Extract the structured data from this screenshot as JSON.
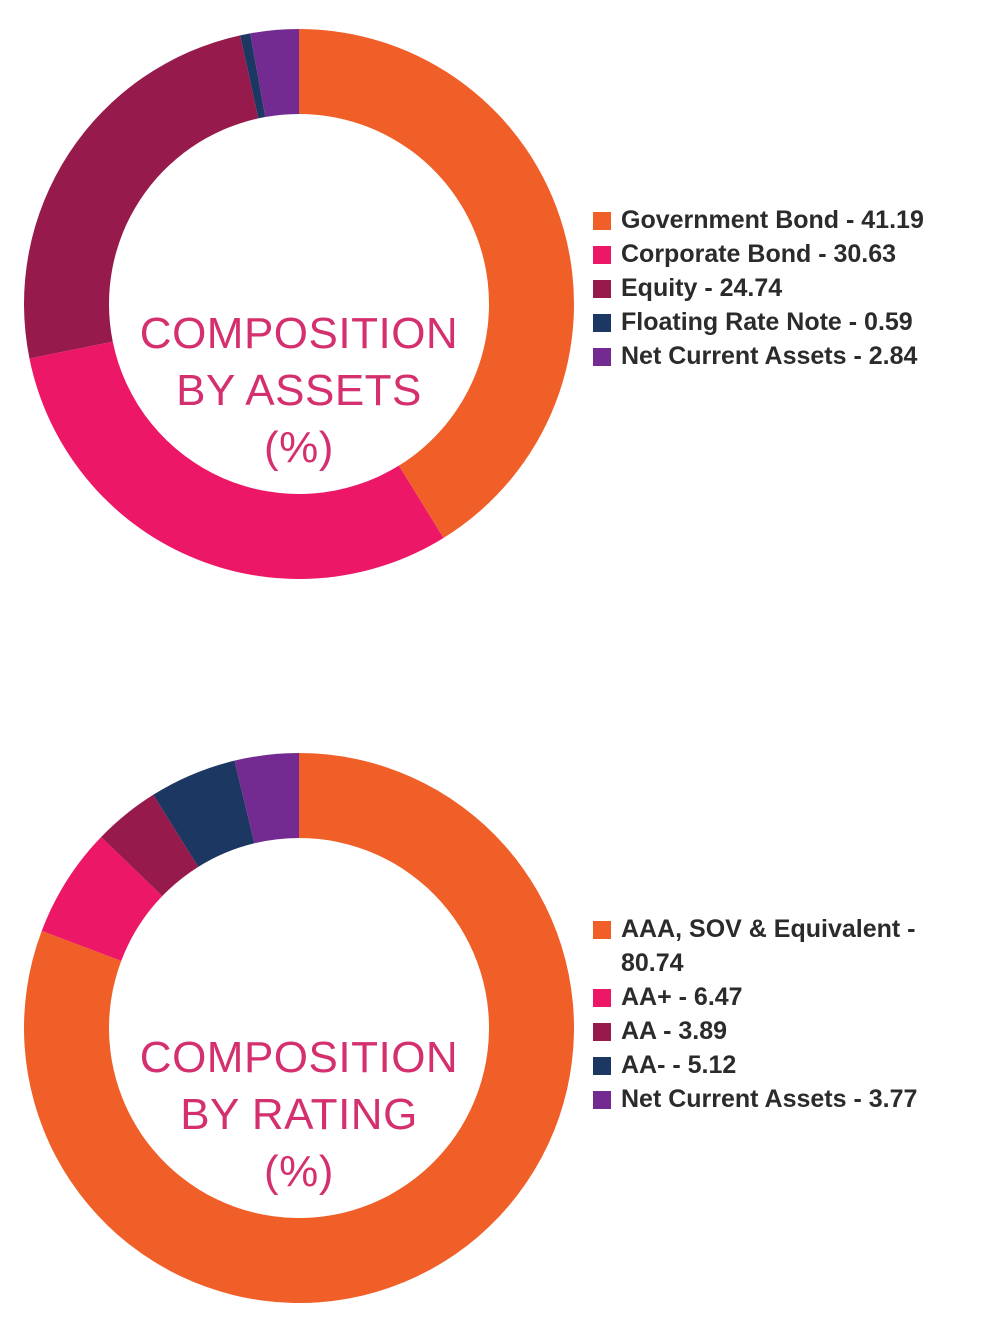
{
  "chart_data": [
    {
      "type": "pie",
      "title": "",
      "center_title": [
        "COMPOSITION",
        "BY ASSETS",
        "(%)"
      ],
      "legend_position": "right",
      "slices": [
        {
          "label": "Government Bond - 41.19",
          "name": "Government Bond",
          "value": 41.19,
          "color": "#f05f28"
        },
        {
          "label": "Corporate Bond - 30.63",
          "name": "Corporate Bond",
          "value": 30.63,
          "color": "#ec1766"
        },
        {
          "label": "Equity - 24.74",
          "name": "Equity",
          "value": 24.74,
          "color": "#971a4c"
        },
        {
          "label": "Floating Rate Note - 0.59",
          "name": "Floating Rate Note",
          "value": 0.59,
          "color": "#1c3761"
        },
        {
          "label": "Net Current Assets - 2.84",
          "name": "Net Current Assets",
          "value": 2.84,
          "color": "#732b91"
        }
      ]
    },
    {
      "type": "pie",
      "title": "",
      "center_title": [
        "COMPOSITION",
        "BY RATING",
        "(%)"
      ],
      "legend_position": "right",
      "slices": [
        {
          "label": "AAA, SOV & Equivalent - 80.74",
          "name": "AAA, SOV & Equivalent",
          "value": 80.74,
          "color": "#f05f28"
        },
        {
          "label": "AA+ - 6.47",
          "name": "AA+",
          "value": 6.47,
          "color": "#ec1766"
        },
        {
          "label": "AA - 3.89",
          "name": "AA",
          "value": 3.89,
          "color": "#971a4c"
        },
        {
          "label": "AA- - 5.12",
          "name": "AA-",
          "value": 5.12,
          "color": "#1c3761"
        },
        {
          "label": "Net Current Assets - 3.77",
          "name": "Net Current Assets",
          "value": 3.77,
          "color": "#732b91"
        }
      ]
    }
  ]
}
